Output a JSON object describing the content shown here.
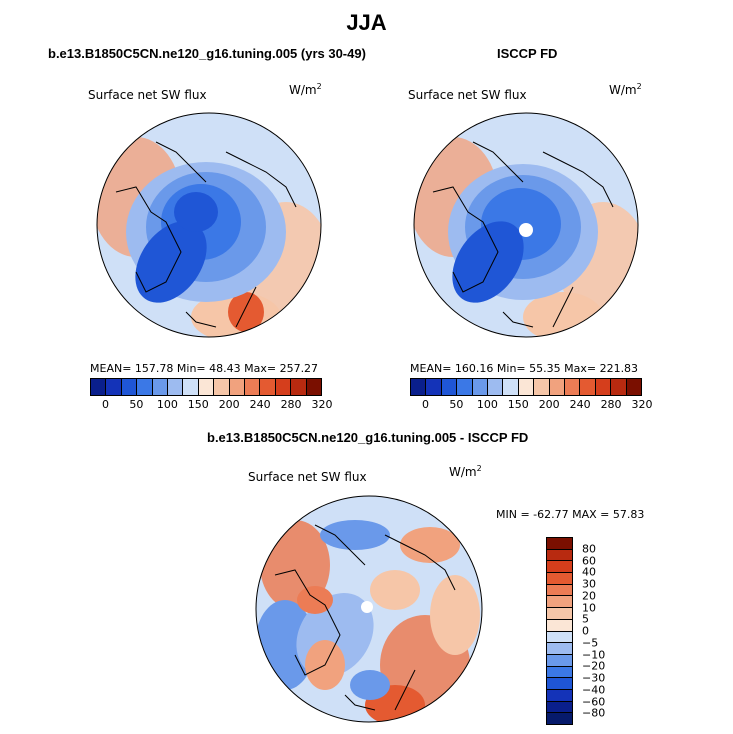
{
  "title": "JJA",
  "panels": [
    {
      "subtitle": "b.e13.B1850C5CN.ne120_g16.tuning.005 (yrs 30-49)",
      "label": "Surface net SW flux",
      "units": "W/m",
      "units_exp": "2",
      "stats": "MEAN= 157.78   Min=   48.43   Max= 257.27"
    },
    {
      "subtitle": "ISCCP FD",
      "label": "Surface net SW flux",
      "units": "W/m",
      "units_exp": "2",
      "stats": "MEAN= 160.16   Min=   55.35   Max= 221.83"
    },
    {
      "subtitle": "b.e13.B1850C5CN.ne120_g16.tuning.005 - ISCCP FD",
      "label": "Surface net SW flux",
      "units": "W/m",
      "units_exp": "2",
      "stats": "MIN = -62.77  MAX =   57.83"
    }
  ],
  "colorbar_abs": {
    "colors": [
      "#0a1f8c",
      "#1433b8",
      "#1f56d6",
      "#3b78e6",
      "#6a99ea",
      "#9dbbf0",
      "#cfe0f7",
      "#fbe6d6",
      "#f6c6a8",
      "#f1a27e",
      "#ec7c55",
      "#e45a31",
      "#d53e1c",
      "#b82a10",
      "#7a0f00"
    ],
    "ticks": [
      "0",
      "50",
      "100",
      "150",
      "200",
      "240",
      "280",
      "320"
    ]
  },
  "colorbar_diff": {
    "colors": [
      "#7a0f00",
      "#b82a10",
      "#d53e1c",
      "#e45a31",
      "#ec7c55",
      "#f1a27e",
      "#f6c6a8",
      "#fbe6d6",
      "#cfe0f7",
      "#9dbbf0",
      "#6a99ea",
      "#3b78e6",
      "#1f56d6",
      "#1433b8",
      "#0a1f8c",
      "#061a6b"
    ],
    "labels": [
      "80",
      "60",
      "40",
      "30",
      "20",
      "10",
      "5",
      "0",
      "−5",
      "−10",
      "−20",
      "−30",
      "−40",
      "−60",
      "−80"
    ]
  },
  "map_colors": {
    "land_outline": "#000000",
    "ocean_high": "#f3c9ad",
    "ice_low": "#2d66d8",
    "mid": "#a9c4ef",
    "pole": "#ffffff"
  }
}
